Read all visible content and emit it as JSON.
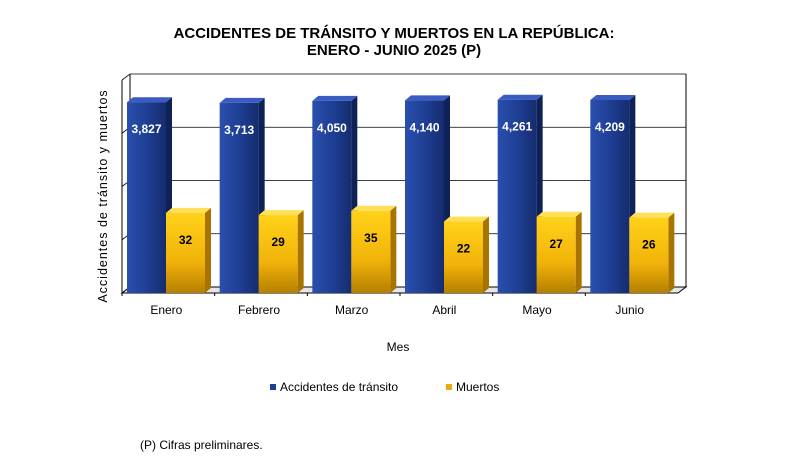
{
  "chart_data": {
    "type": "bar",
    "title": "ACCIDENTES DE TRÁNSITO Y MUERTOS EN LA REPÚBLICA:",
    "subtitle": "ENERO - JUNIO 2025 (P)",
    "xlabel": "Mes",
    "ylabel": "Accidentes de tránsito y muertos",
    "categories": [
      "Enero",
      "Febrero",
      "Marzo",
      "Abril",
      "Mayo",
      "Junio"
    ],
    "series": [
      {
        "name": "Accidentes de tránsito",
        "values": [
          3827,
          3713,
          4050,
          4140,
          4261,
          4209
        ],
        "labels": [
          "3,827",
          "3,713",
          "4,050",
          "4,140",
          "4,261",
          "4,209"
        ],
        "color": "#1f3f95"
      },
      {
        "name": "Muertos",
        "values": [
          32,
          29,
          35,
          22,
          27,
          26
        ],
        "labels": [
          "32",
          "29",
          "35",
          "22",
          "27",
          "26"
        ],
        "color": "#e8ad0c"
      }
    ],
    "ylim": [
      1,
      10000
    ],
    "yscale": "log",
    "grid": true,
    "legend_position": "bottom"
  },
  "footnote": "(P) Cifras preliminares."
}
